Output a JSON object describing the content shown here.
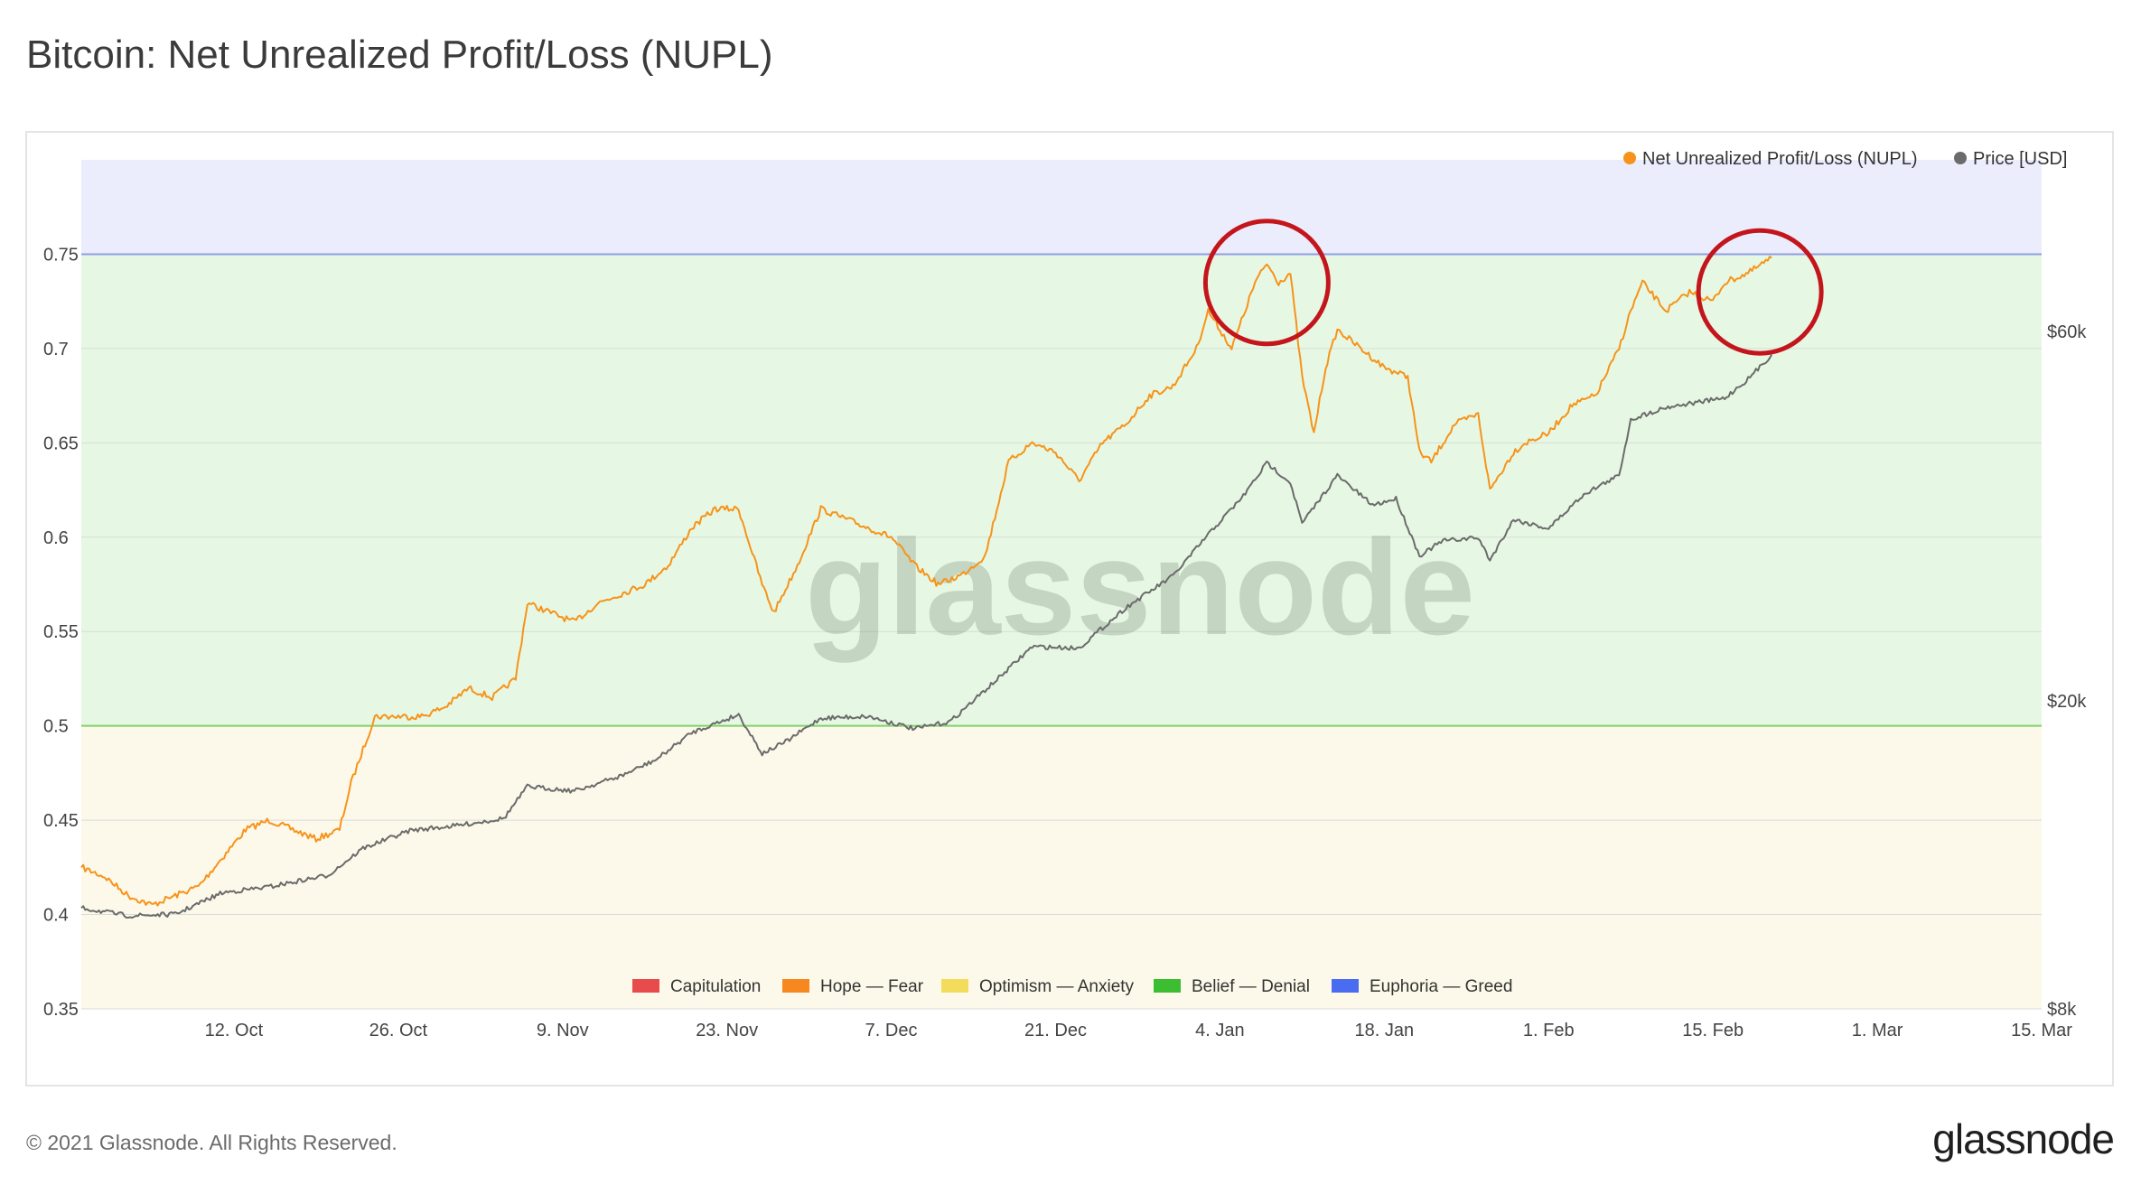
{
  "header": {
    "title": "Bitcoin: Net Unrealized Profit/Loss (NUPL)"
  },
  "footer": {
    "copyright": "© 2021 Glassnode. All Rights Reserved.",
    "logo": "glassnode"
  },
  "watermark": "glassnode",
  "chart_data": {
    "type": "line",
    "title": "Bitcoin: Net Unrealized Profit/Loss (NUPL)",
    "x_range": [
      "2020-09-29",
      "2021-03-15"
    ],
    "x_ticks": [
      {
        "date": "2020-10-12",
        "label": "12. Oct"
      },
      {
        "date": "2020-10-26",
        "label": "26. Oct"
      },
      {
        "date": "2020-11-09",
        "label": "9. Nov"
      },
      {
        "date": "2020-11-23",
        "label": "23. Nov"
      },
      {
        "date": "2020-12-07",
        "label": "7. Dec"
      },
      {
        "date": "2020-12-21",
        "label": "21. Dec"
      },
      {
        "date": "2021-01-04",
        "label": "4. Jan"
      },
      {
        "date": "2021-01-18",
        "label": "18. Jan"
      },
      {
        "date": "2021-02-01",
        "label": "1. Feb"
      },
      {
        "date": "2021-02-15",
        "label": "15. Feb"
      },
      {
        "date": "2021-03-01",
        "label": "1. Mar"
      },
      {
        "date": "2021-03-15",
        "label": "15. Mar"
      }
    ],
    "y_left": {
      "range": [
        0.35,
        0.8
      ],
      "ticks": [
        {
          "value": 0.35,
          "label": "0.35"
        },
        {
          "value": 0.4,
          "label": "0.4"
        },
        {
          "value": 0.45,
          "label": "0.45"
        },
        {
          "value": 0.5,
          "label": "0.5"
        },
        {
          "value": 0.55,
          "label": "0.55"
        },
        {
          "value": 0.6,
          "label": "0.6"
        },
        {
          "value": 0.65,
          "label": "0.65"
        },
        {
          "value": 0.7,
          "label": "0.7"
        },
        {
          "value": 0.75,
          "label": "0.75"
        }
      ]
    },
    "y_right": {
      "scale": "log",
      "range": [
        8000,
        100000
      ],
      "ticks": [
        {
          "value": 8000,
          "label": "$8k"
        },
        {
          "value": 20000,
          "label": "$20k"
        },
        {
          "value": 60000,
          "label": "$60k"
        }
      ]
    },
    "zones": [
      {
        "name": "Optimism — Anxiety",
        "from": 0.35,
        "to": 0.5,
        "color": "#fdf9ea"
      },
      {
        "name": "Belief — Denial",
        "from": 0.5,
        "to": 0.75,
        "color": "#e6f8e3"
      },
      {
        "name": "Euphoria — Greed",
        "from": 0.75,
        "to": 0.8,
        "color": "#ebedfc"
      }
    ],
    "zone_lines": [
      {
        "value": 0.5,
        "color": "#7fd36b"
      },
      {
        "value": 0.75,
        "color": "#8f9de0"
      }
    ],
    "series": [
      {
        "name": "Net Unrealized Profit/Loss (NUPL)",
        "axis": "left",
        "color": "#f7931a",
        "points": [
          [
            "2020-09-29",
            0.425
          ],
          [
            "2020-10-01",
            0.42
          ],
          [
            "2020-10-03",
            0.41
          ],
          [
            "2020-10-05",
            0.405
          ],
          [
            "2020-10-07",
            0.41
          ],
          [
            "2020-10-09",
            0.415
          ],
          [
            "2020-10-11",
            0.43
          ],
          [
            "2020-10-13",
            0.445
          ],
          [
            "2020-10-15",
            0.45
          ],
          [
            "2020-10-17",
            0.445
          ],
          [
            "2020-10-19",
            0.44
          ],
          [
            "2020-10-21",
            0.445
          ],
          [
            "2020-10-22",
            0.47
          ],
          [
            "2020-10-24",
            0.505
          ],
          [
            "2020-10-26",
            0.505
          ],
          [
            "2020-10-28",
            0.505
          ],
          [
            "2020-10-30",
            0.51
          ],
          [
            "2020-11-01",
            0.52
          ],
          [
            "2020-11-03",
            0.515
          ],
          [
            "2020-11-05",
            0.525
          ],
          [
            "2020-11-06",
            0.565
          ],
          [
            "2020-11-08",
            0.56
          ],
          [
            "2020-11-10",
            0.555
          ],
          [
            "2020-11-12",
            0.565
          ],
          [
            "2020-11-14",
            0.57
          ],
          [
            "2020-11-16",
            0.575
          ],
          [
            "2020-11-18",
            0.585
          ],
          [
            "2020-11-20",
            0.605
          ],
          [
            "2020-11-22",
            0.615
          ],
          [
            "2020-11-24",
            0.615
          ],
          [
            "2020-11-26",
            0.575
          ],
          [
            "2020-11-27",
            0.56
          ],
          [
            "2020-11-29",
            0.585
          ],
          [
            "2020-12-01",
            0.615
          ],
          [
            "2020-12-03",
            0.61
          ],
          [
            "2020-12-05",
            0.605
          ],
          [
            "2020-12-07",
            0.6
          ],
          [
            "2020-12-09",
            0.585
          ],
          [
            "2020-12-11",
            0.575
          ],
          [
            "2020-12-13",
            0.58
          ],
          [
            "2020-12-15",
            0.59
          ],
          [
            "2020-12-17",
            0.64
          ],
          [
            "2020-12-19",
            0.65
          ],
          [
            "2020-12-21",
            0.645
          ],
          [
            "2020-12-23",
            0.63
          ],
          [
            "2020-12-25",
            0.65
          ],
          [
            "2020-12-27",
            0.66
          ],
          [
            "2020-12-29",
            0.675
          ],
          [
            "2020-12-31",
            0.68
          ],
          [
            "2021-01-02",
            0.7
          ],
          [
            "2021-01-03",
            0.72
          ],
          [
            "2021-01-05",
            0.7
          ],
          [
            "2021-01-07",
            0.735
          ],
          [
            "2021-01-08",
            0.745
          ],
          [
            "2021-01-09",
            0.735
          ],
          [
            "2021-01-10",
            0.74
          ],
          [
            "2021-01-11",
            0.685
          ],
          [
            "2021-01-12",
            0.655
          ],
          [
            "2021-01-13",
            0.69
          ],
          [
            "2021-01-14",
            0.71
          ],
          [
            "2021-01-16",
            0.7
          ],
          [
            "2021-01-18",
            0.69
          ],
          [
            "2021-01-20",
            0.685
          ],
          [
            "2021-01-21",
            0.645
          ],
          [
            "2021-01-22",
            0.64
          ],
          [
            "2021-01-24",
            0.66
          ],
          [
            "2021-01-26",
            0.665
          ],
          [
            "2021-01-27",
            0.625
          ],
          [
            "2021-01-29",
            0.645
          ],
          [
            "2021-01-30",
            0.65
          ],
          [
            "2021-02-01",
            0.655
          ],
          [
            "2021-02-03",
            0.67
          ],
          [
            "2021-02-05",
            0.675
          ],
          [
            "2021-02-07",
            0.7
          ],
          [
            "2021-02-08",
            0.72
          ],
          [
            "2021-02-09",
            0.735
          ],
          [
            "2021-02-11",
            0.72
          ],
          [
            "2021-02-13",
            0.73
          ],
          [
            "2021-02-15",
            0.725
          ],
          [
            "2021-02-16",
            0.735
          ],
          [
            "2021-02-18",
            0.74
          ],
          [
            "2021-02-20",
            0.748
          ]
        ]
      },
      {
        "name": "Price [USD]",
        "axis": "right",
        "color": "#6b6b6b",
        "points": [
          [
            "2020-09-29",
            10800
          ],
          [
            "2020-10-03",
            10550
          ],
          [
            "2020-10-07",
            10600
          ],
          [
            "2020-10-11",
            11300
          ],
          [
            "2020-10-15",
            11500
          ],
          [
            "2020-10-20",
            11900
          ],
          [
            "2020-10-23",
            12900
          ],
          [
            "2020-10-27",
            13600
          ],
          [
            "2020-10-31",
            13800
          ],
          [
            "2020-11-04",
            14100
          ],
          [
            "2020-11-06",
            15500
          ],
          [
            "2020-11-10",
            15300
          ],
          [
            "2020-11-14",
            16000
          ],
          [
            "2020-11-17",
            16800
          ],
          [
            "2020-11-20",
            18200
          ],
          [
            "2020-11-24",
            19200
          ],
          [
            "2020-11-26",
            17100
          ],
          [
            "2020-11-28",
            17700
          ],
          [
            "2020-12-01",
            19000
          ],
          [
            "2020-12-05",
            19100
          ],
          [
            "2020-12-09",
            18400
          ],
          [
            "2020-12-12",
            18800
          ],
          [
            "2020-12-16",
            21300
          ],
          [
            "2020-12-19",
            23500
          ],
          [
            "2020-12-23",
            23400
          ],
          [
            "2020-12-27",
            26400
          ],
          [
            "2020-12-31",
            29000
          ],
          [
            "2021-01-03",
            32800
          ],
          [
            "2021-01-06",
            36800
          ],
          [
            "2021-01-08",
            40600
          ],
          [
            "2021-01-10",
            38300
          ],
          [
            "2021-01-11",
            33900
          ],
          [
            "2021-01-13",
            37300
          ],
          [
            "2021-01-14",
            39100
          ],
          [
            "2021-01-17",
            35800
          ],
          [
            "2021-01-19",
            36500
          ],
          [
            "2021-01-21",
            30800
          ],
          [
            "2021-01-23",
            32200
          ],
          [
            "2021-01-26",
            32500
          ],
          [
            "2021-01-27",
            30400
          ],
          [
            "2021-01-29",
            34300
          ],
          [
            "2021-02-01",
            33400
          ],
          [
            "2021-02-04",
            37000
          ],
          [
            "2021-02-07",
            39100
          ],
          [
            "2021-02-08",
            46200
          ],
          [
            "2021-02-11",
            47900
          ],
          [
            "2021-02-14",
            48700
          ],
          [
            "2021-02-16",
            49200
          ],
          [
            "2021-02-18",
            52100
          ],
          [
            "2021-02-20",
            56000
          ]
        ]
      }
    ],
    "legend": {
      "placement": "top-right",
      "entries": [
        "Net Unrealized Profit/Loss (NUPL)",
        "Price [USD]"
      ]
    },
    "zone_legend": {
      "placement": "bottom-center",
      "entries": [
        {
          "label": "Capitulation",
          "color": "#e84b4b"
        },
        {
          "label": "Hope — Fear",
          "color": "#f7881f"
        },
        {
          "label": "Optimism — Anxiety",
          "color": "#f3dc5c"
        },
        {
          "label": "Belief — Denial",
          "color": "#3dbe32"
        },
        {
          "label": "Euphoria — Greed",
          "color": "#4a6cf0"
        }
      ]
    },
    "annotations": [
      {
        "type": "circle",
        "date": "2021-01-08",
        "value": 0.735,
        "color": "#c4151c"
      },
      {
        "type": "circle",
        "date": "2021-02-19",
        "value": 0.73,
        "color": "#c4151c"
      }
    ],
    "grid": true
  }
}
